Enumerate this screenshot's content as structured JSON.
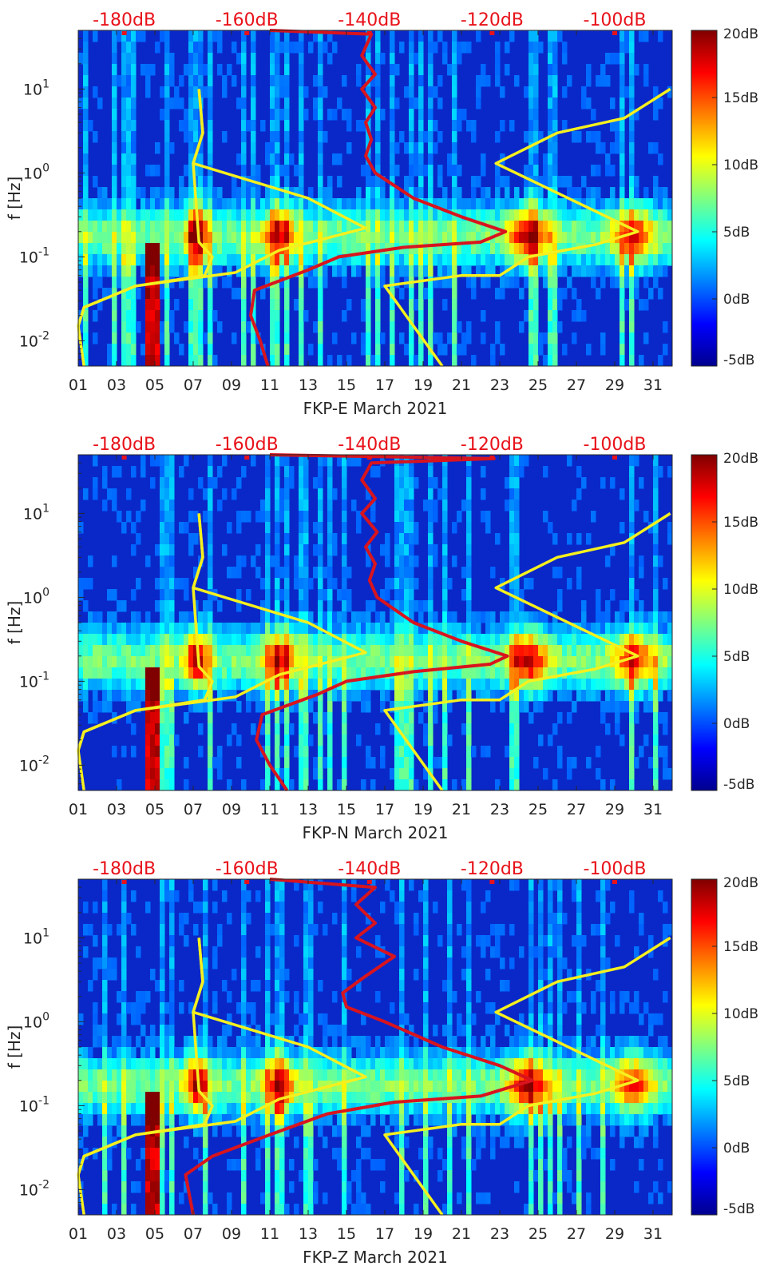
{
  "chart_data": [
    {
      "type": "heatmap",
      "title": "FKP-E March 2021",
      "xlabel": "FKP-E March 2021",
      "ylabel": "f [Hz]",
      "x_ticks": [
        "01",
        "03",
        "05",
        "07",
        "09",
        "11",
        "13",
        "15",
        "17",
        "19",
        "21",
        "23",
        "25",
        "27",
        "29",
        "31"
      ],
      "x_range_days": [
        1,
        32
      ],
      "y_scale": "log",
      "y_range_hz": [
        0.005,
        50
      ],
      "y_ticks": [
        "10^1",
        "10^0",
        "10^-1",
        "10^-2"
      ],
      "top_db_labels": [
        "-180dB",
        "-160dB",
        "-140dB",
        "-120dB",
        "-100dB"
      ],
      "colorbar": {
        "ticks": [
          "20dB",
          "15dB",
          "10dB",
          "5dB",
          "0dB",
          "-5dB"
        ],
        "range_db": [
          -5,
          20
        ],
        "colormap": "jet"
      },
      "series": [
        {
          "name": "yellow reference model (left)",
          "color": "#f5f01e",
          "points_day_hz": [
            [
              1.0,
              0.015
            ],
            [
              1.3,
              0.025
            ],
            [
              4.0,
              0.045
            ],
            [
              7.6,
              0.06
            ],
            [
              8.0,
              0.1
            ],
            [
              7.3,
              0.15
            ],
            [
              7.0,
              1.3
            ],
            [
              7.5,
              3.0
            ],
            [
              7.3,
              10.0
            ]
          ]
        },
        {
          "name": "yellow reference model (middle)",
          "color": "#f5f01e",
          "points_day_hz": [
            [
              1.3,
              0.005
            ],
            [
              1.0,
              0.015
            ],
            [
              1.3,
              0.025
            ],
            [
              4.0,
              0.045
            ],
            [
              9.2,
              0.065
            ],
            [
              11.5,
              0.12
            ],
            [
              16.0,
              0.22
            ],
            [
              13.0,
              0.5
            ],
            [
              7.0,
              1.3
            ],
            [
              7.5,
              3.0
            ],
            [
              7.3,
              10.0
            ]
          ]
        },
        {
          "name": "yellow reference model (right)",
          "color": "#f5f01e",
          "points_day_hz": [
            [
              20.0,
              0.005
            ],
            [
              17.0,
              0.045
            ],
            [
              21.0,
              0.06
            ],
            [
              23.0,
              0.06
            ],
            [
              24.5,
              0.1
            ],
            [
              28.0,
              0.14
            ],
            [
              30.2,
              0.2
            ],
            [
              22.8,
              1.3
            ],
            [
              26.0,
              3.0
            ],
            [
              29.5,
              4.5
            ],
            [
              31.9,
              10.0
            ]
          ]
        },
        {
          "name": "red PSD curve",
          "color": "#d8141e",
          "points_day_hz": [
            [
              10.9,
              0.005
            ],
            [
              10.5,
              0.01
            ],
            [
              10.0,
              0.02
            ],
            [
              10.2,
              0.04
            ],
            [
              13.0,
              0.07
            ],
            [
              14.6,
              0.1
            ],
            [
              18.0,
              0.13
            ],
            [
              22.0,
              0.15
            ],
            [
              23.3,
              0.2
            ],
            [
              21.0,
              0.3
            ],
            [
              18.5,
              0.5
            ],
            [
              16.5,
              1.0
            ],
            [
              16.0,
              1.6
            ],
            [
              16.3,
              2.5
            ],
            [
              16.0,
              4.0
            ],
            [
              16.5,
              6.0
            ],
            [
              15.8,
              10.0
            ],
            [
              16.5,
              15.0
            ],
            [
              15.8,
              25.0
            ],
            [
              16.3,
              45.0
            ],
            [
              11.0,
              50.0
            ]
          ]
        }
      ]
    },
    {
      "type": "heatmap",
      "title": "FKP-N March 2021",
      "xlabel": "FKP-N March 2021",
      "ylabel": "f [Hz]",
      "x_ticks": [
        "01",
        "03",
        "05",
        "07",
        "09",
        "11",
        "13",
        "15",
        "17",
        "19",
        "21",
        "23",
        "25",
        "27",
        "29",
        "31"
      ],
      "x_range_days": [
        1,
        32
      ],
      "y_scale": "log",
      "y_range_hz": [
        0.005,
        50
      ],
      "y_ticks": [
        "10^1",
        "10^0",
        "10^-1",
        "10^-2"
      ],
      "top_db_labels": [
        "-180dB",
        "-160dB",
        "-140dB",
        "-120dB",
        "-100dB"
      ],
      "colorbar": {
        "ticks": [
          "20dB",
          "15dB",
          "10dB",
          "5dB",
          "0dB",
          "-5dB"
        ],
        "range_db": [
          -5,
          20
        ],
        "colormap": "jet"
      },
      "series": [
        {
          "name": "yellow reference model (left)",
          "color": "#f5f01e",
          "points_day_hz": [
            [
              1.0,
              0.015
            ],
            [
              1.3,
              0.025
            ],
            [
              4.0,
              0.045
            ],
            [
              7.6,
              0.06
            ],
            [
              8.0,
              0.1
            ],
            [
              7.3,
              0.15
            ],
            [
              7.0,
              1.3
            ],
            [
              7.5,
              3.0
            ],
            [
              7.3,
              10.0
            ]
          ]
        },
        {
          "name": "yellow reference model (middle)",
          "color": "#f5f01e",
          "points_day_hz": [
            [
              1.3,
              0.005
            ],
            [
              1.0,
              0.015
            ],
            [
              1.3,
              0.025
            ],
            [
              4.0,
              0.045
            ],
            [
              9.2,
              0.065
            ],
            [
              11.5,
              0.12
            ],
            [
              16.0,
              0.22
            ],
            [
              13.0,
              0.5
            ],
            [
              7.0,
              1.3
            ],
            [
              7.5,
              3.0
            ],
            [
              7.3,
              10.0
            ]
          ]
        },
        {
          "name": "yellow reference model (right)",
          "color": "#f5f01e",
          "points_day_hz": [
            [
              20.0,
              0.005
            ],
            [
              17.0,
              0.045
            ],
            [
              21.0,
              0.06
            ],
            [
              23.0,
              0.06
            ],
            [
              24.5,
              0.1
            ],
            [
              28.0,
              0.14
            ],
            [
              30.2,
              0.2
            ],
            [
              22.8,
              1.3
            ],
            [
              26.0,
              3.0
            ],
            [
              29.5,
              4.5
            ],
            [
              31.9,
              10.0
            ]
          ]
        },
        {
          "name": "red PSD curve",
          "color": "#d8141e",
          "points_day_hz": [
            [
              11.9,
              0.005
            ],
            [
              11.0,
              0.01
            ],
            [
              10.3,
              0.02
            ],
            [
              10.6,
              0.04
            ],
            [
              13.5,
              0.07
            ],
            [
              15.0,
              0.1
            ],
            [
              18.5,
              0.13
            ],
            [
              22.5,
              0.16
            ],
            [
              23.4,
              0.2
            ],
            [
              21.0,
              0.3
            ],
            [
              18.5,
              0.5
            ],
            [
              16.6,
              1.0
            ],
            [
              16.2,
              1.6
            ],
            [
              16.5,
              2.5
            ],
            [
              16.0,
              4.0
            ],
            [
              16.6,
              6.0
            ],
            [
              15.8,
              10.0
            ],
            [
              16.5,
              15.0
            ],
            [
              15.8,
              25.0
            ],
            [
              16.3,
              40.0
            ],
            [
              22.7,
              45.0
            ],
            [
              11.0,
              50.0
            ]
          ]
        }
      ]
    },
    {
      "type": "heatmap",
      "title": "FKP-Z March 2021",
      "xlabel": "FKP-Z March 2021",
      "ylabel": "f [Hz]",
      "x_ticks": [
        "01",
        "03",
        "05",
        "07",
        "09",
        "11",
        "13",
        "15",
        "17",
        "19",
        "21",
        "23",
        "25",
        "27",
        "29",
        "31"
      ],
      "x_range_days": [
        1,
        32
      ],
      "y_scale": "log",
      "y_range_hz": [
        0.005,
        50
      ],
      "y_ticks": [
        "10^1",
        "10^0",
        "10^-1",
        "10^-2"
      ],
      "top_db_labels": [
        "-180dB",
        "-160dB",
        "-140dB",
        "-120dB",
        "-100dB"
      ],
      "colorbar": {
        "ticks": [
          "20dB",
          "15dB",
          "10dB",
          "5dB",
          "0dB",
          "-5dB"
        ],
        "range_db": [
          -5,
          20
        ],
        "colormap": "jet"
      },
      "series": [
        {
          "name": "yellow reference model (left)",
          "color": "#f5f01e",
          "points_day_hz": [
            [
              1.0,
              0.015
            ],
            [
              1.3,
              0.025
            ],
            [
              4.0,
              0.045
            ],
            [
              7.6,
              0.06
            ],
            [
              8.0,
              0.1
            ],
            [
              7.3,
              0.15
            ],
            [
              7.0,
              1.3
            ],
            [
              7.5,
              3.0
            ],
            [
              7.3,
              10.0
            ]
          ]
        },
        {
          "name": "yellow reference model (middle)",
          "color": "#f5f01e",
          "points_day_hz": [
            [
              1.3,
              0.005
            ],
            [
              1.0,
              0.015
            ],
            [
              1.3,
              0.025
            ],
            [
              4.0,
              0.045
            ],
            [
              9.2,
              0.065
            ],
            [
              11.5,
              0.12
            ],
            [
              16.0,
              0.22
            ],
            [
              13.0,
              0.5
            ],
            [
              7.0,
              1.3
            ],
            [
              7.5,
              3.0
            ],
            [
              7.3,
              10.0
            ]
          ]
        },
        {
          "name": "yellow reference model (right)",
          "color": "#f5f01e",
          "points_day_hz": [
            [
              20.0,
              0.005
            ],
            [
              17.0,
              0.045
            ],
            [
              21.0,
              0.06
            ],
            [
              23.0,
              0.06
            ],
            [
              24.5,
              0.1
            ],
            [
              28.0,
              0.14
            ],
            [
              30.2,
              0.2
            ],
            [
              22.8,
              1.3
            ],
            [
              26.0,
              3.0
            ],
            [
              29.5,
              4.5
            ],
            [
              31.9,
              10.0
            ]
          ]
        },
        {
          "name": "red PSD curve",
          "color": "#d8141e",
          "points_day_hz": [
            [
              7.0,
              0.005
            ],
            [
              6.6,
              0.015
            ],
            [
              8.0,
              0.025
            ],
            [
              11.0,
              0.045
            ],
            [
              14.0,
              0.08
            ],
            [
              17.5,
              0.11
            ],
            [
              22.0,
              0.13
            ],
            [
              24.7,
              0.2
            ],
            [
              23.0,
              0.3
            ],
            [
              20.0,
              0.5
            ],
            [
              17.0,
              1.0
            ],
            [
              15.0,
              1.5
            ],
            [
              14.8,
              2.2
            ],
            [
              16.0,
              3.5
            ],
            [
              17.5,
              6.0
            ],
            [
              15.5,
              10.0
            ],
            [
              16.5,
              15.0
            ],
            [
              15.5,
              25.0
            ],
            [
              16.5,
              40.0
            ],
            [
              11.0,
              50.0
            ]
          ]
        }
      ]
    }
  ]
}
